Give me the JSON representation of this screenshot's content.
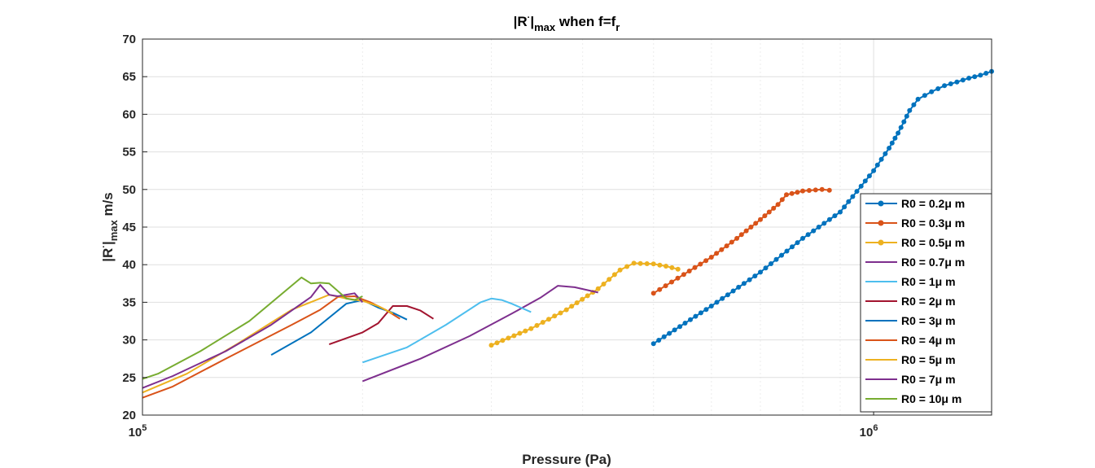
{
  "chart_data": {
    "type": "line",
    "title": {
      "base": "|R",
      "sup": "·",
      "mid": "|",
      "sub": "max",
      "tail": " when f=f",
      "sub2": "r"
    },
    "xlabel": "Pressure (Pa)",
    "ylabel": {
      "base": "|R",
      "sup": "·",
      "mid": "|",
      "sub": "max",
      "tail": " m/s"
    },
    "xscale": "log",
    "xlim": [
      100000,
      1450000
    ],
    "ylim": [
      20,
      70
    ],
    "yticks": [
      20,
      25,
      30,
      35,
      40,
      45,
      50,
      55,
      60,
      65,
      70
    ],
    "xticks": [
      {
        "value": 100000,
        "mantissa": "10",
        "exp": "5"
      },
      {
        "value": 1000000,
        "mantissa": "10",
        "exp": "6"
      }
    ],
    "grid": true,
    "legend_position": "lower-right",
    "series": [
      {
        "name": "R0 = 0.2μ m",
        "color": "#0072BD",
        "marker": "dot",
        "x": [
          500000,
          600000,
          700000,
          800000,
          900000,
          1000000,
          1050000,
          1080000,
          1100000,
          1120000,
          1150000,
          1200000,
          1250000,
          1300000,
          1350000,
          1400000,
          1450000
        ],
        "y": [
          29.5,
          34.5,
          39.0,
          43.5,
          47.0,
          52.5,
          55.5,
          57.5,
          59.0,
          60.5,
          62.0,
          63.0,
          63.8,
          64.3,
          64.8,
          65.2,
          65.7
        ]
      },
      {
        "name": "R0 = 0.3μ m",
        "color": "#D95319",
        "marker": "dot",
        "x": [
          500000,
          550000,
          600000,
          650000,
          700000,
          740000,
          760000,
          800000,
          850000,
          870000
        ],
        "y": [
          36.2,
          38.7,
          41.0,
          43.5,
          46.0,
          48.0,
          49.3,
          49.8,
          50.0,
          49.9
        ]
      },
      {
        "name": "R0 = 0.5μ m",
        "color": "#EDB120",
        "marker": "dot",
        "x": [
          300000,
          340000,
          380000,
          420000,
          450000,
          470000,
          500000,
          520000,
          540000
        ],
        "y": [
          29.3,
          31.5,
          34.0,
          36.8,
          39.3,
          40.2,
          40.1,
          39.8,
          39.4
        ]
      },
      {
        "name": "R0 = 0.7μ m",
        "color": "#7E2F8E",
        "marker": "none",
        "x": [
          200000,
          240000,
          280000,
          320000,
          350000,
          370000,
          390000,
          420000
        ],
        "y": [
          24.5,
          27.5,
          30.5,
          33.5,
          35.6,
          37.2,
          37.0,
          36.3
        ]
      },
      {
        "name": "R0 = 1μ m",
        "color": "#4DBEEE",
        "marker": "none",
        "x": [
          200000,
          230000,
          260000,
          290000,
          300000,
          310000,
          320000,
          340000
        ],
        "y": [
          27.0,
          29.0,
          32.0,
          35.0,
          35.5,
          35.3,
          34.8,
          33.7
        ]
      },
      {
        "name": "R0 = 2μ m",
        "color": "#A2142F",
        "marker": "none",
        "x": [
          180000,
          200000,
          210000,
          220000,
          230000,
          240000,
          250000
        ],
        "y": [
          29.4,
          31.0,
          32.2,
          34.5,
          34.5,
          33.9,
          32.8
        ]
      },
      {
        "name": "R0 = 3μ m",
        "color": "#0072BD",
        "marker": "none",
        "x": [
          150000,
          170000,
          190000,
          200000,
          210000,
          220000,
          230000
        ],
        "y": [
          28.0,
          31.0,
          34.8,
          35.3,
          34.3,
          33.6,
          32.7
        ]
      },
      {
        "name": "R0 = 4μ m",
        "color": "#D95319",
        "marker": "none",
        "x": [
          100000,
          110000,
          130000,
          160000,
          175000,
          185000,
          195000,
          205000,
          215000,
          225000
        ],
        "y": [
          22.3,
          23.8,
          27.5,
          32.0,
          34.0,
          35.7,
          35.8,
          35.0,
          34.0,
          32.8
        ]
      },
      {
        "name": "R0 = 5μ m",
        "color": "#EDB120",
        "marker": "none",
        "x": [
          100000,
          115000,
          135000,
          160000,
          180000,
          190000,
          200000,
          210000,
          220000
        ],
        "y": [
          23.0,
          25.5,
          29.5,
          34.0,
          36.0,
          35.5,
          35.2,
          34.5,
          33.5
        ]
      },
      {
        "name": "R0 = 7μ m",
        "color": "#7E2F8E",
        "marker": "none",
        "x": [
          100000,
          110000,
          130000,
          150000,
          170000,
          175000,
          180000,
          185000,
          195000,
          200000
        ],
        "y": [
          23.6,
          25.2,
          28.5,
          32.0,
          35.7,
          37.3,
          36.0,
          35.8,
          36.2,
          35.0
        ]
      },
      {
        "name": "R0 = 10μ m",
        "color": "#77AC30",
        "marker": "none",
        "x": [
          100000,
          105000,
          120000,
          140000,
          165000,
          170000,
          175000,
          180000,
          185000,
          190000,
          195000,
          200000
        ],
        "y": [
          24.8,
          25.5,
          28.5,
          32.5,
          38.3,
          37.5,
          37.6,
          37.5,
          36.5,
          35.5,
          35.3,
          35.8
        ]
      }
    ]
  }
}
